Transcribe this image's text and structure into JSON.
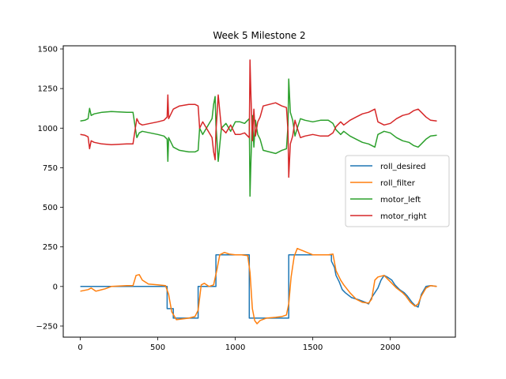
{
  "chart_data": {
    "type": "line",
    "title": "Week 5 Milestone 2",
    "xlabel": "",
    "ylabel": "",
    "xlim": [
      -110,
      2420
    ],
    "ylim": [
      -320,
      1520
    ],
    "xticks": [
      0,
      500,
      1000,
      1500,
      2000
    ],
    "yticks": [
      -250,
      0,
      250,
      500,
      750,
      1000,
      1250,
      1500
    ],
    "grid": false,
    "legend_position": "center-right",
    "series": [
      {
        "name": "roll_desired",
        "color": "#1f77b4",
        "x": [
          0,
          560,
          560,
          600,
          600,
          760,
          760,
          875,
          875,
          1090,
          1090,
          1345,
          1345,
          1620,
          1620,
          1640,
          1650,
          1670,
          1690,
          1710,
          1750,
          1800,
          1840,
          1860,
          1880,
          1920,
          1940,
          1960,
          1980,
          2010,
          2030,
          2060,
          2090,
          2110,
          2140,
          2160,
          2180,
          2200,
          2230,
          2260,
          2300
        ],
        "y": [
          0,
          0,
          -140,
          -140,
          -200,
          -200,
          0,
          0,
          200,
          200,
          -200,
          -200,
          200,
          200,
          160,
          120,
          70,
          30,
          -20,
          -40,
          -70,
          -85,
          -100,
          -110,
          -70,
          -10,
          40,
          70,
          60,
          40,
          10,
          -20,
          -40,
          -60,
          -100,
          -120,
          -130,
          -50,
          0,
          5,
          0
        ]
      },
      {
        "name": "roll_filter",
        "color": "#ff7f0e",
        "x": [
          0,
          50,
          70,
          100,
          160,
          200,
          300,
          340,
          360,
          380,
          400,
          440,
          500,
          550,
          570,
          590,
          620,
          660,
          700,
          740,
          760,
          780,
          800,
          830,
          860,
          880,
          900,
          930,
          960,
          1000,
          1040,
          1080,
          1095,
          1110,
          1125,
          1140,
          1160,
          1200,
          1260,
          1300,
          1330,
          1345,
          1360,
          1380,
          1400,
          1450,
          1500,
          1550,
          1600,
          1630,
          1650,
          1680,
          1700,
          1740,
          1780,
          1820,
          1860,
          1880,
          1900,
          1920,
          1960,
          2000,
          2040,
          2080,
          2100,
          2130,
          2160,
          2180,
          2200,
          2230,
          2260,
          2300
        ],
        "y": [
          -30,
          -20,
          -10,
          -30,
          -15,
          0,
          5,
          5,
          70,
          75,
          40,
          15,
          10,
          5,
          -50,
          -160,
          -210,
          -205,
          -200,
          -190,
          -150,
          10,
          20,
          0,
          10,
          100,
          200,
          215,
          205,
          200,
          200,
          195,
          90,
          -140,
          -215,
          -235,
          -215,
          -200,
          -195,
          -190,
          -180,
          -110,
          60,
          190,
          240,
          220,
          200,
          200,
          200,
          205,
          100,
          40,
          10,
          -40,
          -80,
          -100,
          -105,
          -80,
          40,
          60,
          70,
          30,
          -10,
          -40,
          -60,
          -100,
          -125,
          -110,
          -60,
          -10,
          5,
          0
        ]
      },
      {
        "name": "motor_left",
        "color": "#2ca02c",
        "x": [
          0,
          30,
          50,
          60,
          70,
          90,
          140,
          200,
          300,
          340,
          355,
          365,
          380,
          400,
          450,
          500,
          540,
          560,
          565,
          570,
          580,
          600,
          640,
          700,
          740,
          760,
          770,
          790,
          820,
          850,
          860,
          870,
          875,
          880,
          890,
          910,
          940,
          970,
          1000,
          1030,
          1060,
          1080,
          1090,
          1095,
          1100,
          1110,
          1120,
          1130,
          1145,
          1160,
          1180,
          1220,
          1260,
          1300,
          1330,
          1340,
          1345,
          1355,
          1370,
          1385,
          1400,
          1420,
          1450,
          1500,
          1550,
          1600,
          1630,
          1650,
          1680,
          1700,
          1740,
          1780,
          1820,
          1860,
          1900,
          1920,
          1960,
          2000,
          2040,
          2080,
          2120,
          2150,
          2180,
          2200,
          2230,
          2260,
          2300
        ],
        "y": [
          1045,
          1050,
          1060,
          1125,
          1080,
          1090,
          1100,
          1105,
          1100,
          1100,
          1000,
          940,
          970,
          980,
          970,
          960,
          950,
          930,
          790,
          940,
          920,
          880,
          860,
          850,
          850,
          860,
          1000,
          960,
          1010,
          1060,
          1150,
          1200,
          1020,
          950,
          790,
          1000,
          1030,
          980,
          1040,
          1040,
          1030,
          1050,
          1060,
          570,
          760,
          1080,
          880,
          1050,
          960,
          930,
          860,
          850,
          840,
          860,
          870,
          1020,
          1310,
          1100,
          1050,
          950,
          1000,
          1060,
          1050,
          1040,
          1050,
          1050,
          1030,
          990,
          960,
          980,
          950,
          930,
          910,
          900,
          880,
          960,
          980,
          970,
          940,
          920,
          910,
          890,
          880,
          900,
          930,
          950,
          955
        ]
      },
      {
        "name": "motor_right",
        "color": "#d62728",
        "x": [
          0,
          30,
          50,
          60,
          70,
          90,
          140,
          200,
          300,
          340,
          355,
          365,
          380,
          400,
          450,
          500,
          540,
          560,
          565,
          570,
          580,
          600,
          640,
          700,
          740,
          760,
          770,
          790,
          820,
          850,
          860,
          870,
          875,
          880,
          890,
          910,
          940,
          970,
          1000,
          1030,
          1060,
          1080,
          1090,
          1095,
          1100,
          1110,
          1120,
          1130,
          1145,
          1160,
          1180,
          1220,
          1260,
          1300,
          1330,
          1340,
          1345,
          1355,
          1370,
          1385,
          1400,
          1420,
          1450,
          1500,
          1550,
          1600,
          1630,
          1650,
          1680,
          1700,
          1740,
          1780,
          1820,
          1860,
          1900,
          1920,
          1960,
          2000,
          2040,
          2080,
          2120,
          2150,
          2180,
          2200,
          2230,
          2260,
          2300
        ],
        "y": [
          960,
          955,
          945,
          870,
          920,
          910,
          900,
          895,
          900,
          900,
          1000,
          1060,
          1030,
          1020,
          1030,
          1040,
          1050,
          1070,
          1210,
          1060,
          1080,
          1120,
          1140,
          1150,
          1150,
          1140,
          1000,
          1040,
          990,
          940,
          850,
          800,
          980,
          1050,
          1210,
          1000,
          970,
          1020,
          960,
          960,
          970,
          950,
          940,
          1430,
          1240,
          920,
          1120,
          950,
          1040,
          1070,
          1140,
          1150,
          1160,
          1140,
          1130,
          980,
          690,
          900,
          950,
          1050,
          1000,
          940,
          950,
          960,
          950,
          950,
          970,
          1010,
          1040,
          1020,
          1050,
          1070,
          1090,
          1100,
          1120,
          1040,
          1020,
          1030,
          1060,
          1080,
          1090,
          1110,
          1120,
          1100,
          1070,
          1050,
          1045
        ]
      }
    ]
  }
}
